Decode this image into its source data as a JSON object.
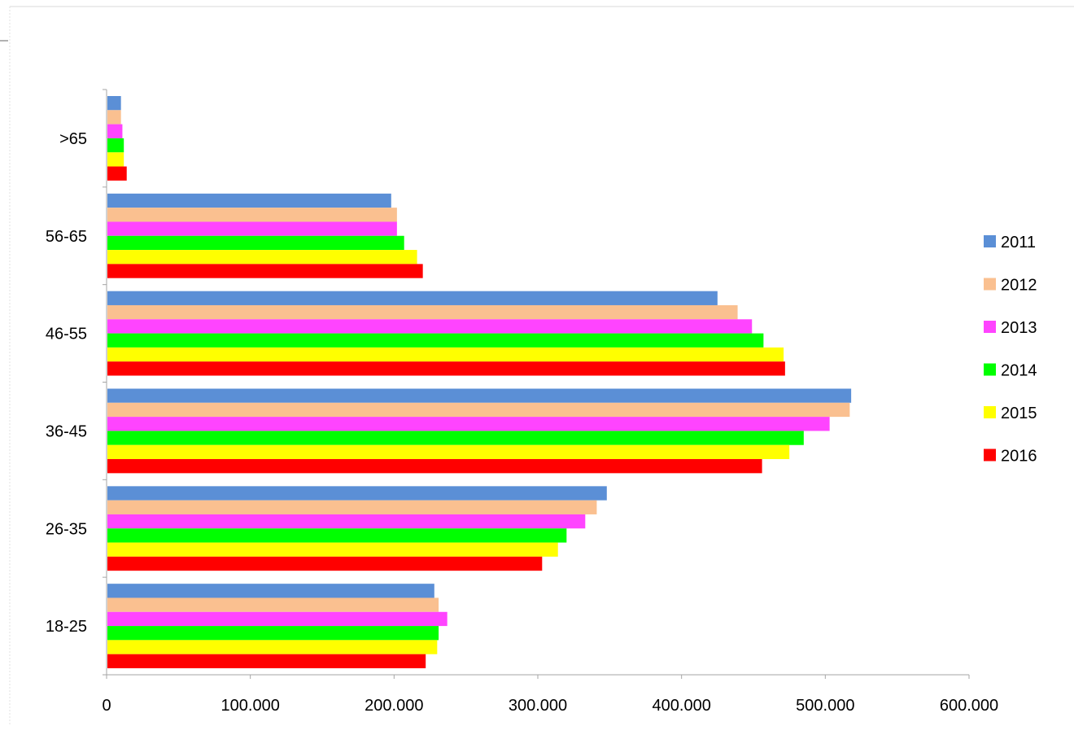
{
  "chart_data": {
    "type": "bar",
    "orientation": "horizontal",
    "categories": [
      "18-25",
      "26-35",
      "36-45",
      "46-55",
      "56-65",
      ">65"
    ],
    "series": [
      {
        "name": "2011",
        "color": "#5b8fd6",
        "values": [
          228000,
          348000,
          518000,
          425000,
          198000,
          10000
        ]
      },
      {
        "name": "2012",
        "color": "#fac090",
        "values": [
          231000,
          341000,
          517000,
          439000,
          202000,
          10000
        ]
      },
      {
        "name": "2013",
        "color": "#ff44ff",
        "values": [
          237000,
          333000,
          503000,
          449000,
          202000,
          11000
        ]
      },
      {
        "name": "2014",
        "color": "#00ff00",
        "values": [
          231000,
          320000,
          485000,
          457000,
          207000,
          12000
        ]
      },
      {
        "name": "2015",
        "color": "#ffff00",
        "values": [
          230000,
          314000,
          475000,
          471000,
          216000,
          12000
        ]
      },
      {
        "name": "2016",
        "color": "#ff0000",
        "values": [
          222000,
          303000,
          456000,
          472000,
          220000,
          14000
        ]
      }
    ],
    "xlim": [
      0,
      600000
    ],
    "x_ticks": [
      0,
      100000,
      200000,
      300000,
      400000,
      500000,
      600000
    ],
    "x_tick_labels": [
      "0",
      "100.000",
      "200.000",
      "300.000",
      "400.000",
      "500.000",
      "600.000"
    ],
    "title": "",
    "xlabel": "",
    "ylabel": "",
    "grid": false,
    "legend_position": "right"
  }
}
